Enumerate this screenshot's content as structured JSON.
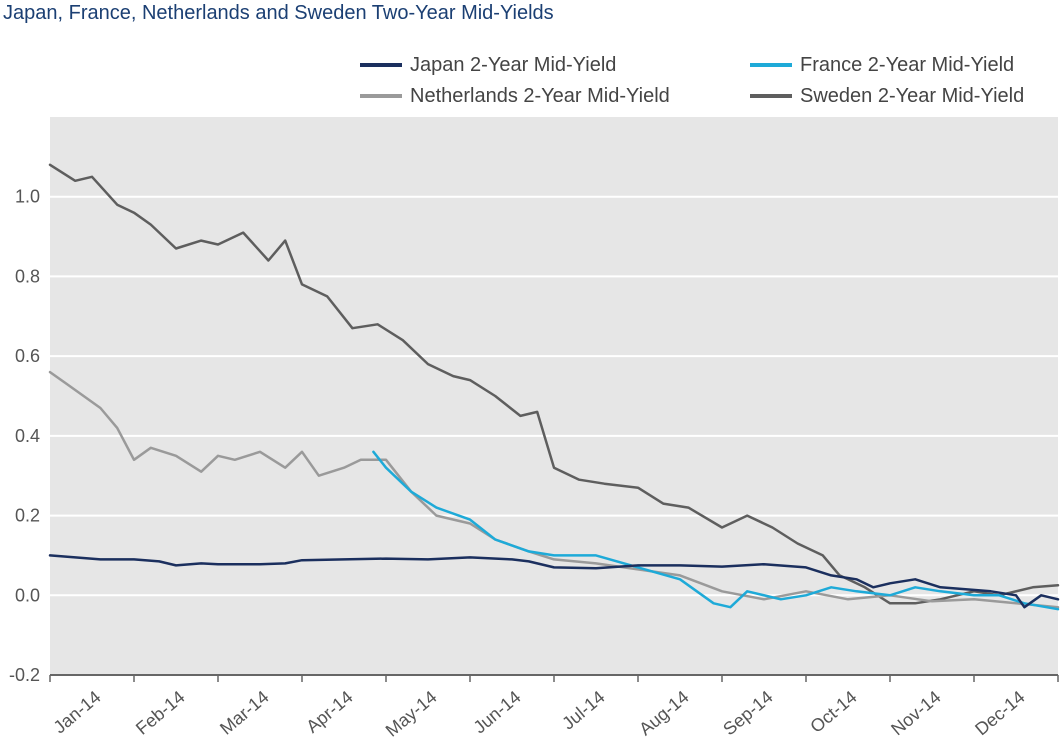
{
  "chart_data": {
    "type": "line",
    "title": "Japan, France, Netherlands and Sweden Two-Year Mid-Yields",
    "xlabel": "",
    "ylabel": "",
    "x_tick_labels": [
      "Jan-14",
      "Feb-14",
      "Mar-14",
      "Apr-14",
      "May-14",
      "Jun-14",
      "Jul-14",
      "Aug-14",
      "Sep-14",
      "Oct-14",
      "Nov-14",
      "Dec-14"
    ],
    "y_ticks": [
      "-0.2",
      "0.0",
      "0.2",
      "0.4",
      "0.6",
      "0.8",
      "1.0"
    ],
    "xlim": [
      0,
      12
    ],
    "ylim": [
      -0.2,
      1.2
    ],
    "grid": true,
    "legend_position": "top",
    "series": [
      {
        "name": "Japan 2-Year Mid-Yield",
        "color": "#1b2f5e",
        "x": [
          0,
          0.3,
          0.6,
          1.0,
          1.3,
          1.5,
          1.8,
          2.0,
          2.5,
          2.8,
          3.0,
          3.5,
          4.0,
          4.5,
          5.0,
          5.5,
          5.7,
          6.0,
          6.5,
          7.0,
          7.5,
          8.0,
          8.5,
          9.0,
          9.3,
          9.6,
          9.8,
          10.0,
          10.3,
          10.6,
          10.9,
          11.2,
          11.5,
          11.6,
          11.8,
          12.0
        ],
        "y": [
          0.1,
          0.095,
          0.09,
          0.09,
          0.085,
          0.075,
          0.08,
          0.078,
          0.078,
          0.08,
          0.088,
          0.09,
          0.092,
          0.09,
          0.095,
          0.09,
          0.085,
          0.07,
          0.068,
          0.075,
          0.075,
          0.072,
          0.078,
          0.07,
          0.05,
          0.04,
          0.02,
          0.03,
          0.04,
          0.02,
          0.015,
          0.01,
          0.0,
          -0.03,
          0.0,
          -0.01
        ]
      },
      {
        "name": "France 2-Year Mid-Yield",
        "color": "#1eaad8",
        "x": [
          3.85,
          4.0,
          4.3,
          4.6,
          5.0,
          5.3,
          5.7,
          6.0,
          6.5,
          7.0,
          7.5,
          7.9,
          8.1,
          8.3,
          8.7,
          9.0,
          9.3,
          9.6,
          10.0,
          10.3,
          10.6,
          11.0,
          11.3,
          11.6,
          12.0
        ],
        "y": [
          0.36,
          0.32,
          0.26,
          0.22,
          0.19,
          0.14,
          0.11,
          0.1,
          0.1,
          0.07,
          0.04,
          -0.02,
          -0.03,
          0.01,
          -0.01,
          0.0,
          0.02,
          0.01,
          0.0,
          0.02,
          0.01,
          0.0,
          0.0,
          -0.02,
          -0.035
        ]
      },
      {
        "name": "Netherlands 2-Year Mid-Yield",
        "color": "#9a9a9a",
        "x": [
          0,
          0.2,
          0.4,
          0.6,
          0.8,
          1.0,
          1.2,
          1.5,
          1.8,
          2.0,
          2.2,
          2.5,
          2.8,
          3.0,
          3.2,
          3.5,
          3.7,
          4.0,
          4.3,
          4.6,
          5.0,
          5.3,
          5.7,
          6.0,
          6.5,
          7.0,
          7.5,
          8.0,
          8.5,
          9.0,
          9.5,
          10.0,
          10.5,
          11.0,
          11.5,
          12.0
        ],
        "y": [
          0.56,
          0.53,
          0.5,
          0.47,
          0.42,
          0.34,
          0.37,
          0.35,
          0.31,
          0.35,
          0.34,
          0.36,
          0.32,
          0.36,
          0.3,
          0.32,
          0.34,
          0.34,
          0.26,
          0.2,
          0.18,
          0.14,
          0.11,
          0.09,
          0.08,
          0.065,
          0.05,
          0.01,
          -0.01,
          0.01,
          -0.01,
          0.0,
          -0.015,
          -0.01,
          -0.02,
          -0.03
        ]
      },
      {
        "name": "Sweden 2-Year Mid-Yield",
        "color": "#5e5e5e",
        "x": [
          0,
          0.3,
          0.5,
          0.8,
          1.0,
          1.2,
          1.5,
          1.8,
          2.0,
          2.3,
          2.6,
          2.8,
          3.0,
          3.3,
          3.6,
          3.9,
          4.2,
          4.5,
          4.8,
          5.0,
          5.3,
          5.6,
          5.8,
          6.0,
          6.3,
          6.6,
          7.0,
          7.3,
          7.6,
          8.0,
          8.3,
          8.6,
          8.9,
          9.2,
          9.4,
          9.5,
          9.7,
          10.0,
          10.3,
          10.6,
          11.0,
          11.3,
          11.7,
          12.0
        ],
        "y": [
          1.08,
          1.04,
          1.05,
          0.98,
          0.96,
          0.93,
          0.87,
          0.89,
          0.88,
          0.91,
          0.84,
          0.89,
          0.78,
          0.75,
          0.67,
          0.68,
          0.64,
          0.58,
          0.55,
          0.54,
          0.5,
          0.45,
          0.46,
          0.32,
          0.29,
          0.28,
          0.27,
          0.23,
          0.22,
          0.17,
          0.2,
          0.17,
          0.13,
          0.1,
          0.05,
          0.04,
          0.02,
          -0.02,
          -0.02,
          -0.01,
          0.01,
          0.0,
          0.02,
          0.025
        ]
      }
    ]
  }
}
